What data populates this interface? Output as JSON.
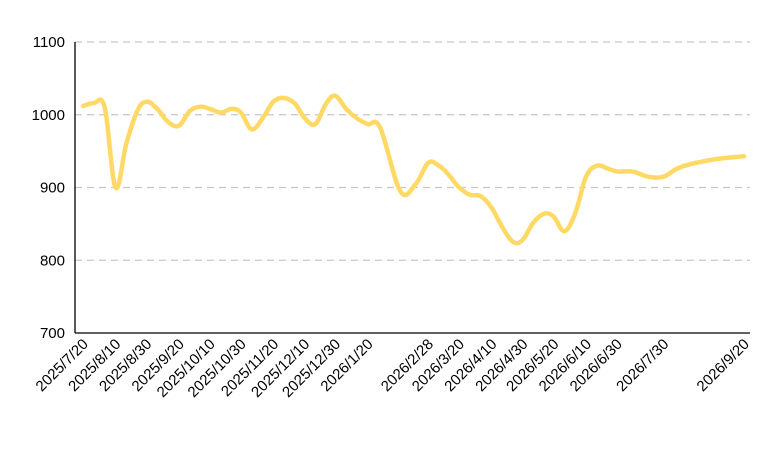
{
  "chart_data": {
    "type": "line",
    "title": "",
    "xlabel": "",
    "ylabel": "",
    "ylim": [
      700,
      1100
    ],
    "yticks": [
      700,
      800,
      900,
      1000,
      1100
    ],
    "grid": "horizontal-dashed",
    "legend": "none",
    "x_tick_labels": [
      "2025/7/20",
      "2025/8/10",
      "2025/8/30",
      "2025/9/20",
      "2025/10/10",
      "2025/10/30",
      "2025/11/20",
      "2025/12/10",
      "2025/12/30",
      "2026/1/20",
      "2026/2/28",
      "2026/3/20",
      "2026/4/10",
      "2026/4/30",
      "2026/5/20",
      "2026/6/10",
      "2026/6/30",
      "2026/7/30",
      "2026/9/20"
    ],
    "series": [
      {
        "color": "#FFD966",
        "points": [
          [
            "2025/7/20",
            1012
          ],
          [
            "2025/7/27",
            1016
          ],
          [
            "2025/8/3",
            1010
          ],
          [
            "2025/8/10",
            900
          ],
          [
            "2025/8/17",
            960
          ],
          [
            "2025/8/24",
            1005
          ],
          [
            "2025/8/30",
            1018
          ],
          [
            "2025/9/6",
            1008
          ],
          [
            "2025/9/13",
            990
          ],
          [
            "2025/9/20",
            985
          ],
          [
            "2025/9/27",
            1005
          ],
          [
            "2025/10/4",
            1011
          ],
          [
            "2025/10/10",
            1008
          ],
          [
            "2025/10/17",
            1003
          ],
          [
            "2025/10/24",
            1008
          ],
          [
            "2025/10/30",
            1003
          ],
          [
            "2025/11/6",
            980
          ],
          [
            "2025/11/13",
            995
          ],
          [
            "2025/11/20",
            1018
          ],
          [
            "2025/11/27",
            1023
          ],
          [
            "2025/12/4",
            1015
          ],
          [
            "2025/12/10",
            996
          ],
          [
            "2025/12/17",
            987
          ],
          [
            "2025/12/24",
            1015
          ],
          [
            "2025/12/30",
            1026
          ],
          [
            "2026/1/6",
            1008
          ],
          [
            "2026/1/13",
            995
          ],
          [
            "2026/1/20",
            987
          ],
          [
            "2026/1/28",
            982
          ],
          [
            "2026/2/10",
            895
          ],
          [
            "2026/2/20",
            905
          ],
          [
            "2026/2/28",
            934
          ],
          [
            "2026/3/7",
            930
          ],
          [
            "2026/3/13",
            918
          ],
          [
            "2026/3/20",
            900
          ],
          [
            "2026/3/27",
            890
          ],
          [
            "2026/4/3",
            888
          ],
          [
            "2026/4/10",
            872
          ],
          [
            "2026/4/17",
            845
          ],
          [
            "2026/4/24",
            825
          ],
          [
            "2026/4/30",
            828
          ],
          [
            "2026/5/7",
            852
          ],
          [
            "2026/5/14",
            864
          ],
          [
            "2026/5/20",
            860
          ],
          [
            "2026/5/27",
            840
          ],
          [
            "2026/6/3",
            865
          ],
          [
            "2026/6/10",
            915
          ],
          [
            "2026/6/17",
            930
          ],
          [
            "2026/6/24",
            926
          ],
          [
            "2026/6/30",
            922
          ],
          [
            "2026/7/10",
            922
          ],
          [
            "2026/7/20",
            915
          ],
          [
            "2026/7/30",
            915
          ],
          [
            "2026/8/10",
            928
          ],
          [
            "2026/8/30",
            938
          ],
          [
            "2026/9/20",
            943
          ]
        ]
      }
    ]
  }
}
